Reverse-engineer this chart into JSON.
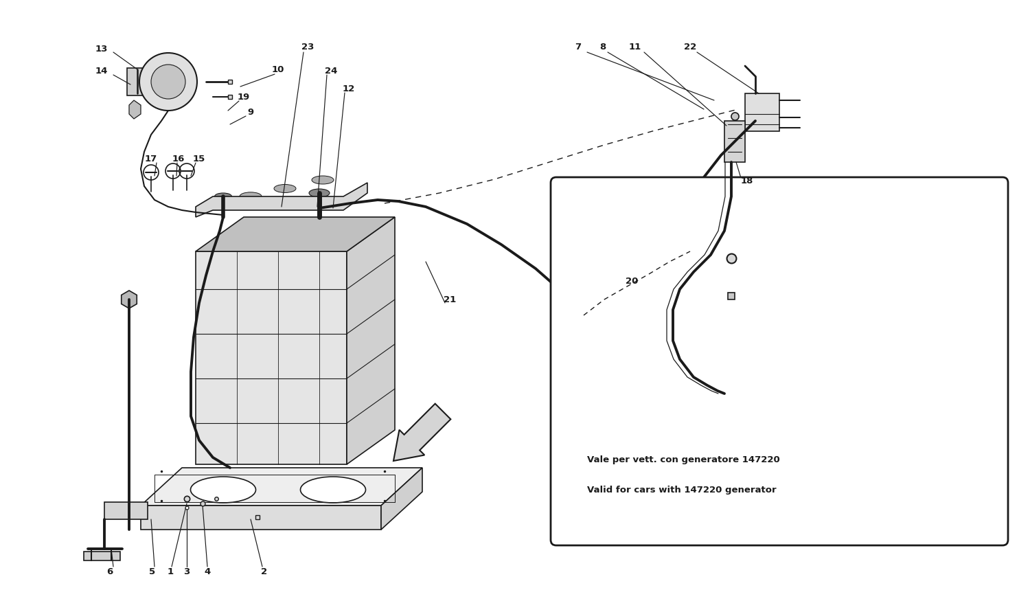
{
  "background_color": "#ffffff",
  "line_color": "#1a1a1a",
  "fig_width": 15.0,
  "fig_height": 8.91,
  "dpi": 100,
  "box_text_line1": "Vale per vett. con generatore 147220",
  "box_text_line2": "Valid for cars with 147220 generator"
}
